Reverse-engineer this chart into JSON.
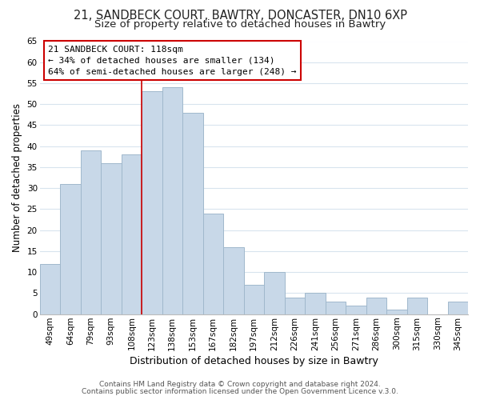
{
  "title1": "21, SANDBECK COURT, BAWTRY, DONCASTER, DN10 6XP",
  "title2": "Size of property relative to detached houses in Bawtry",
  "xlabel": "Distribution of detached houses by size in Bawtry",
  "ylabel": "Number of detached properties",
  "bar_labels": [
    "49sqm",
    "64sqm",
    "79sqm",
    "93sqm",
    "108sqm",
    "123sqm",
    "138sqm",
    "153sqm",
    "167sqm",
    "182sqm",
    "197sqm",
    "212sqm",
    "226sqm",
    "241sqm",
    "256sqm",
    "271sqm",
    "286sqm",
    "300sqm",
    "315sqm",
    "330sqm",
    "345sqm"
  ],
  "bar_values": [
    12,
    31,
    39,
    36,
    38,
    53,
    54,
    48,
    24,
    16,
    7,
    10,
    4,
    5,
    3,
    2,
    4,
    1,
    4,
    0,
    3
  ],
  "bar_color": "#c8d8e8",
  "bar_edge_color": "#a0b8cc",
  "annotation_title": "21 SANDBECK COURT: 118sqm",
  "annotation_line1": "← 34% of detached houses are smaller (134)",
  "annotation_line2": "64% of semi-detached houses are larger (248) →",
  "annotation_box_color": "#ffffff",
  "annotation_box_edge": "#cc0000",
  "red_line_color": "#cc0000",
  "footer1": "Contains HM Land Registry data © Crown copyright and database right 2024.",
  "footer2": "Contains public sector information licensed under the Open Government Licence v.3.0.",
  "ylim": [
    0,
    65
  ],
  "yticks": [
    0,
    5,
    10,
    15,
    20,
    25,
    30,
    35,
    40,
    45,
    50,
    55,
    60,
    65
  ],
  "bg_color": "#ffffff",
  "plot_bg_color": "#ffffff",
  "grid_color": "#d8e4ee",
  "title1_fontsize": 10.5,
  "title2_fontsize": 9.5,
  "xlabel_fontsize": 9,
  "ylabel_fontsize": 8.5,
  "tick_fontsize": 7.5,
  "footer_fontsize": 6.5,
  "red_line_bar_index": 5
}
